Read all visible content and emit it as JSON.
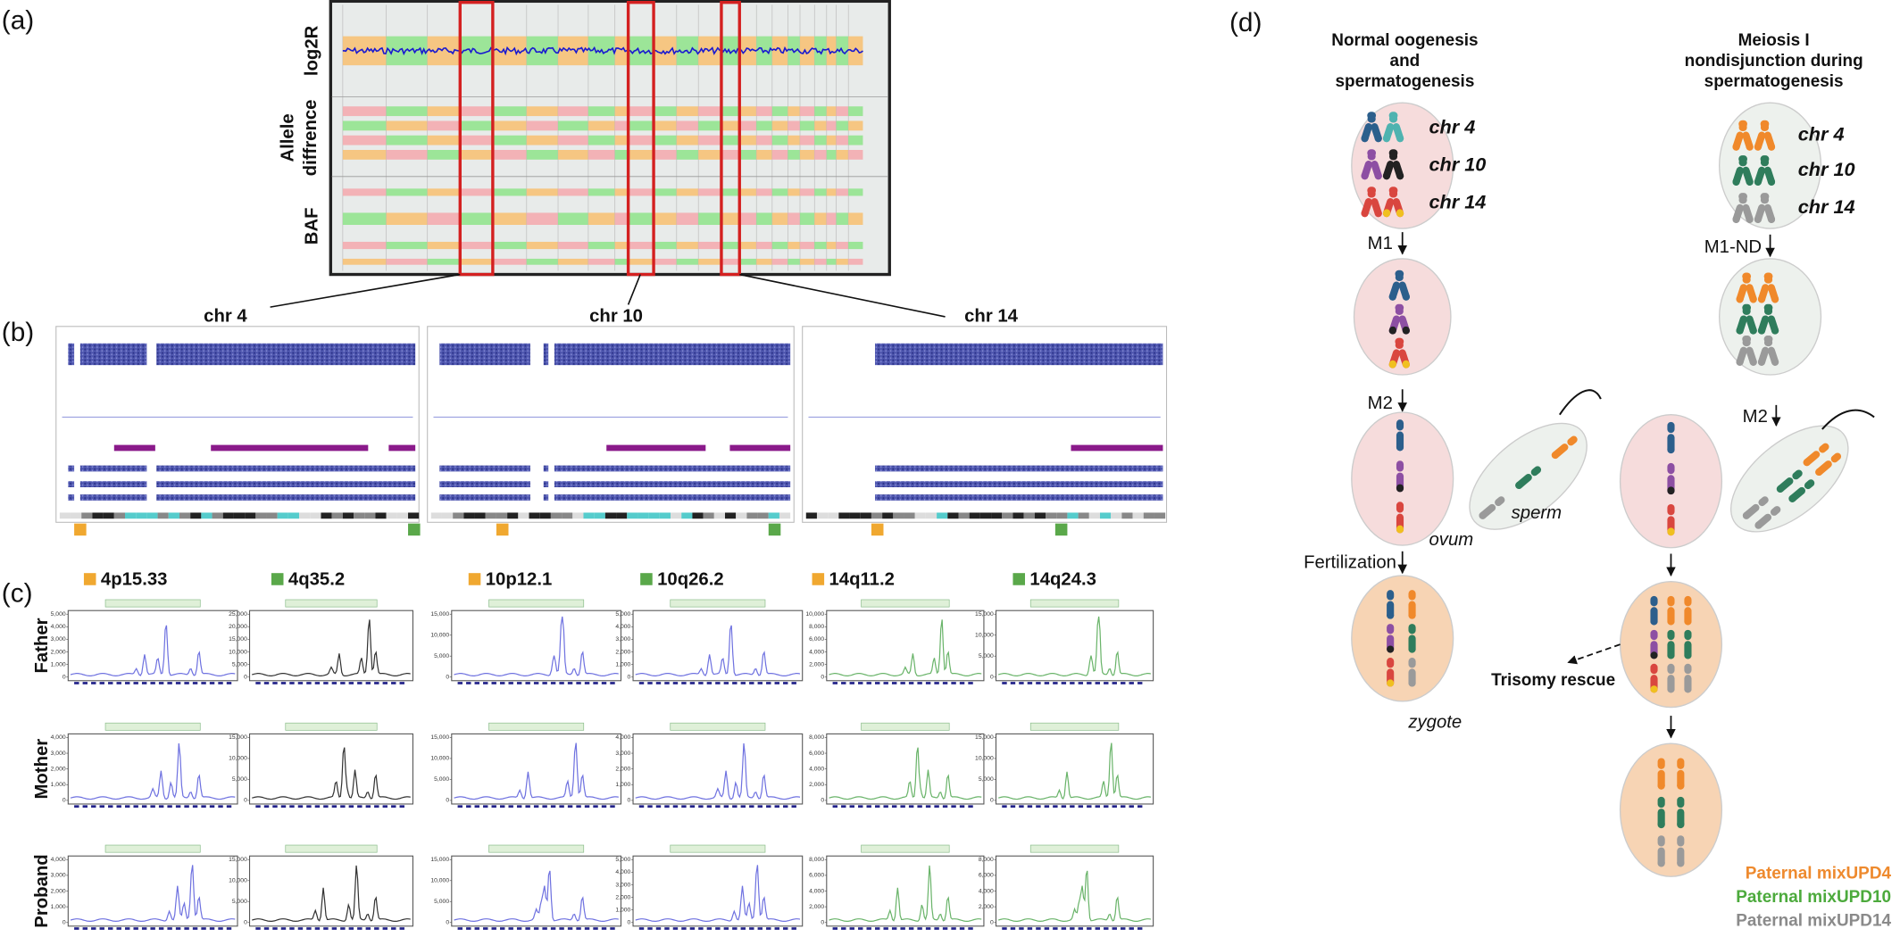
{
  "panel_labels": [
    "(a)",
    "(b)",
    "(c)",
    "(d)"
  ],
  "panel_a": {
    "log2r": "log2R",
    "allele": [
      "Allele",
      "diffrence"
    ],
    "baf": "BAF"
  },
  "panel_b": {
    "chromosomes": [
      "chr 4",
      "chr 10",
      "chr 14"
    ]
  },
  "panel_c": {
    "loci": [
      "4p15.33",
      "4q35.2",
      "10p12.1",
      "10q26.2",
      "14q11.2",
      "14q24.3"
    ],
    "locus_colors": [
      "#f0a830",
      "#5aa84a",
      "#f0a830",
      "#5aa84a",
      "#f0a830",
      "#5aa84a"
    ],
    "trace_colors": [
      "#6f72e0",
      "#333333",
      "#6f72e0",
      "#6f72e0",
      "#6ab46a",
      "#6ab46a"
    ],
    "rows": [
      {
        "label": "Father",
        "yticks": [
          [
            {
              "value": 5000,
              "label": "5,000"
            },
            {
              "value": 4000,
              "label": "4,000"
            },
            {
              "value": 3000,
              "label": "3,000"
            },
            {
              "value": 2000,
              "label": "2,000"
            },
            {
              "value": 1000,
              "label": "1,000"
            },
            0
          ],
          [
            {
              "value": 25000,
              "label": "25,000"
            },
            {
              "value": 20000,
              "label": "20,000"
            },
            {
              "value": 15000,
              "label": "15,000"
            },
            {
              "value": 10000,
              "label": "10,000"
            },
            {
              "value": 5000,
              "label": "5,000"
            },
            0
          ],
          [
            {
              "value": 15000,
              "label": "15,000"
            },
            {
              "value": 10000,
              "label": "10,000"
            },
            {
              "value": 5000,
              "label": "5,000"
            },
            0
          ],
          [
            {
              "value": 5000,
              "label": "5,000"
            },
            {
              "value": 4000,
              "label": "4,000"
            },
            {
              "value": 3000,
              "label": "3,000"
            },
            {
              "value": 2000,
              "label": "2,000"
            },
            {
              "value": 1000,
              "label": "1,000"
            },
            0
          ],
          [
            {
              "value": 10000,
              "label": "10,000"
            },
            {
              "value": 8000,
              "label": "8,000"
            },
            {
              "value": 6000,
              "label": "6,000"
            },
            {
              "value": 4000,
              "label": "4,000"
            },
            {
              "value": 2000,
              "label": "2,000"
            },
            0
          ],
          [
            {
              "value": 15000,
              "label": "15,000"
            },
            {
              "value": 10000,
              "label": "10,000"
            },
            {
              "value": 5000,
              "label": "5,000"
            },
            0
          ]
        ]
      },
      {
        "label": "Mother",
        "yticks": [
          [
            {
              "value": 4000,
              "label": "4,000"
            },
            {
              "value": 3000,
              "label": "3,000"
            },
            {
              "value": 2000,
              "label": "2,000"
            },
            {
              "value": 1000,
              "label": "1,000"
            },
            0
          ],
          [
            {
              "value": 15000,
              "label": "15,000"
            },
            {
              "value": 10000,
              "label": "10,000"
            },
            {
              "value": 5000,
              "label": "5,000"
            },
            0
          ],
          [
            {
              "value": 15000,
              "label": "15,000"
            },
            {
              "value": 10000,
              "label": "10,000"
            },
            {
              "value": 5000,
              "label": "5,000"
            },
            0
          ],
          [
            {
              "value": 4000,
              "label": "4,000"
            },
            {
              "value": 3000,
              "label": "3,000"
            },
            {
              "value": 2000,
              "label": "2,000"
            },
            {
              "value": 1000,
              "label": "1,000"
            },
            0
          ],
          [
            {
              "value": 8000,
              "label": "8,000"
            },
            {
              "value": 6000,
              "label": "6,000"
            },
            {
              "value": 4000,
              "label": "4,000"
            },
            {
              "value": 2000,
              "label": "2,000"
            },
            0
          ],
          [
            {
              "value": 15000,
              "label": "15,000"
            },
            {
              "value": 10000,
              "label": "10,000"
            },
            {
              "value": 5000,
              "label": "5,000"
            },
            0
          ]
        ]
      },
      {
        "label": "Proband",
        "yticks": [
          [
            {
              "value": 4000,
              "label": "4,000"
            },
            {
              "value": 3000,
              "label": "3,000"
            },
            {
              "value": 2000,
              "label": "2,000"
            },
            {
              "value": 1000,
              "label": "1,000"
            },
            0
          ],
          [
            {
              "value": 15000,
              "label": "15,000"
            },
            {
              "value": 10000,
              "label": "10,000"
            },
            {
              "value": 5000,
              "label": "5,000"
            },
            0
          ],
          [
            {
              "value": 15000,
              "label": "15,000"
            },
            {
              "value": 10000,
              "label": "10,000"
            },
            {
              "value": 5000,
              "label": "5,000"
            },
            0
          ],
          [
            {
              "value": 5000,
              "label": "5,000"
            },
            {
              "value": 4000,
              "label": "4,000"
            },
            {
              "value": 3000,
              "label": "3,000"
            },
            {
              "value": 2000,
              "label": "2,000"
            },
            {
              "value": 1000,
              "label": "1,000"
            },
            0
          ],
          [
            {
              "value": 8000,
              "label": "8,000"
            },
            {
              "value": 6000,
              "label": "6,000"
            },
            {
              "value": 4000,
              "label": "4,000"
            },
            {
              "value": 2000,
              "label": "2,000"
            },
            0
          ],
          [
            {
              "value": 8000,
              "label": "8,000"
            },
            {
              "value": 6000,
              "label": "6,000"
            },
            {
              "value": 4000,
              "label": "4,000"
            },
            {
              "value": 2000,
              "label": "2,000"
            },
            0
          ]
        ]
      }
    ]
  },
  "panel_d": {
    "titles": [
      [
        "Normal oogenesis",
        "and",
        "spermatogenesis"
      ],
      [
        "Meiosis I",
        "nondisjunction during",
        "spermatogenesis"
      ]
    ],
    "chromosome_labels": [
      "chr 4",
      "chr 10",
      "chr 14"
    ],
    "steps": {
      "m1": "M1",
      "m2": "M2",
      "m1_nd": "M1-ND",
      "fertilization": "Fertilization"
    },
    "cells": {
      "ovum": "ovum",
      "sperm": "sperm",
      "zygote": "zygote"
    },
    "trisomy_rescue": "Trisomy rescue",
    "legend": [
      {
        "text": "Paternal mixUPD4",
        "color": "#ee8a2e"
      },
      {
        "text": "Paternal mixUPD10",
        "color": "#4caa3c"
      },
      {
        "text": "Paternal mixUPD14",
        "color": "#8a8a8a"
      }
    ]
  }
}
